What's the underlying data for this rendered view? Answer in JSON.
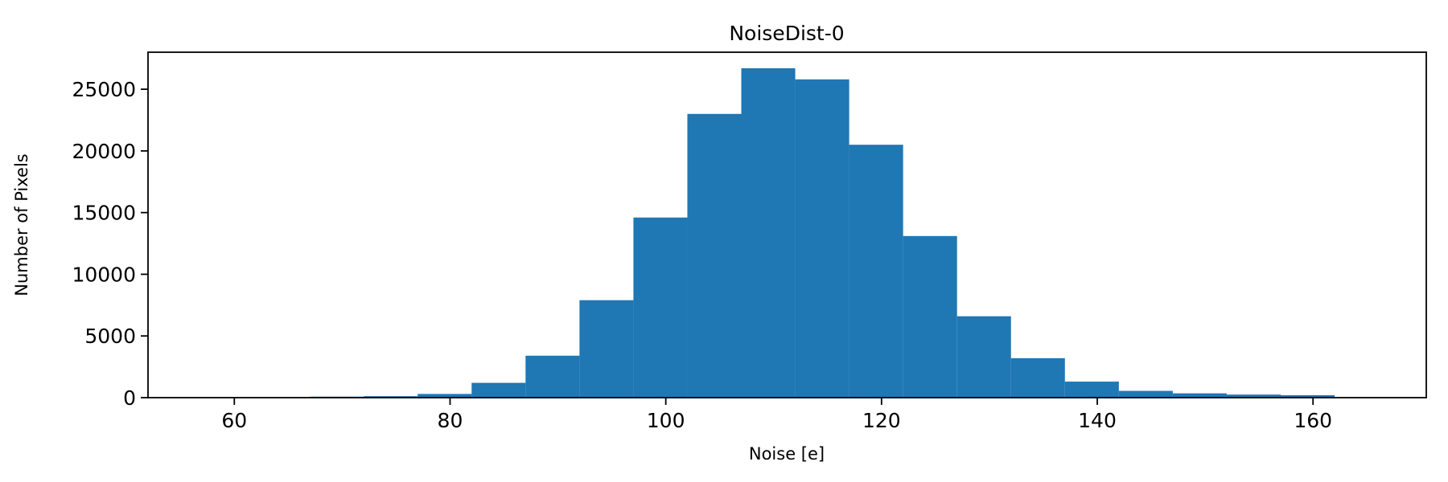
{
  "chart_data": {
    "type": "bar",
    "subtype": "histogram",
    "title": "NoiseDist-0",
    "xlabel": "Noise [e]",
    "ylabel": "Number of Pixels",
    "bar_color": "#1f77b4",
    "axis_color": "#000000",
    "bin_start": 67,
    "bin_width": 5,
    "bin_edges": [
      67,
      72,
      77,
      82,
      87,
      92,
      97,
      102,
      107,
      112,
      117,
      122,
      127,
      132,
      137,
      142,
      147,
      152,
      157,
      162
    ],
    "counts": [
      80,
      120,
      300,
      1200,
      3400,
      7900,
      14600,
      23000,
      26700,
      25800,
      20500,
      13100,
      6600,
      3200,
      1300,
      550,
      350,
      250,
      200
    ],
    "xlim": [
      52,
      170.5
    ],
    "ylim": [
      0,
      28000
    ],
    "xticks": [
      60,
      80,
      100,
      120,
      140,
      160
    ],
    "yticks": [
      0,
      5000,
      10000,
      15000,
      20000,
      25000
    ],
    "grid": "off",
    "legend": "none"
  }
}
